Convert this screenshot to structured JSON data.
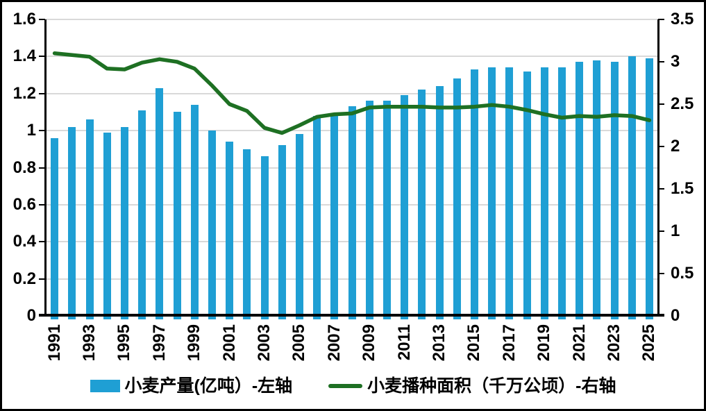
{
  "chart_data": {
    "type": "combo",
    "subtype": "bar+line, dual y-axis",
    "title": "",
    "background": "#FFFFFF",
    "frame_color": "#000000",
    "gridline_color": "#D9D9D9",
    "grid": true,
    "legend_position": "bottom",
    "categories": [
      1991,
      1992,
      1993,
      1994,
      1995,
      1996,
      1997,
      1998,
      1999,
      2000,
      2001,
      2002,
      2003,
      2004,
      2005,
      2006,
      2007,
      2008,
      2009,
      2010,
      2011,
      2012,
      2013,
      2014,
      2015,
      2016,
      2017,
      2018,
      2019,
      2020,
      2021,
      2022,
      2023,
      2024,
      2025
    ],
    "x_axis": {
      "labeled_ticks": [
        "1991",
        "1993",
        "1995",
        "1997",
        "1999",
        "2001",
        "2003",
        "2005",
        "2007",
        "2009",
        "2011",
        "2013",
        "2015",
        "2017",
        "2019",
        "2021",
        "2023",
        "2025"
      ],
      "label_rotation": "vertical-bottom-to-top"
    },
    "left_axis": {
      "min": 0,
      "max": 1.6,
      "ticks": [
        "1.6",
        "1.4",
        "1.2",
        "1",
        "0.8",
        "0.6",
        "0.4",
        "0.2",
        "0"
      ]
    },
    "right_axis": {
      "min": 0,
      "max": 3.5,
      "ticks": [
        "3.5",
        "3",
        "2.5",
        "2",
        "1.5",
        "1",
        "0.5",
        "0"
      ]
    },
    "series": [
      {
        "name": "小麦产量(亿吨）-左轴",
        "type": "bar",
        "axis": "left",
        "color": "#1F9FD4",
        "values": [
          0.96,
          1.02,
          1.06,
          0.99,
          1.02,
          1.11,
          1.23,
          1.1,
          1.14,
          1.0,
          0.94,
          0.9,
          0.86,
          0.92,
          0.98,
          1.08,
          1.09,
          1.13,
          1.16,
          1.16,
          1.19,
          1.22,
          1.24,
          1.28,
          1.33,
          1.34,
          1.34,
          1.32,
          1.34,
          1.34,
          1.37,
          1.38,
          1.37,
          1.4,
          1.39
        ]
      },
      {
        "name": "小麦播种面积（千万公顷）-右轴",
        "type": "line",
        "axis": "right",
        "color": "#1E7023",
        "values": [
          3.1,
          3.08,
          3.06,
          2.92,
          2.91,
          2.99,
          3.03,
          3.0,
          2.92,
          2.72,
          2.5,
          2.42,
          2.22,
          2.16,
          2.25,
          2.35,
          2.38,
          2.39,
          2.46,
          2.47,
          2.47,
          2.47,
          2.46,
          2.46,
          2.47,
          2.49,
          2.47,
          2.43,
          2.38,
          2.34,
          2.36,
          2.35,
          2.37,
          2.36,
          2.31
        ]
      }
    ]
  }
}
